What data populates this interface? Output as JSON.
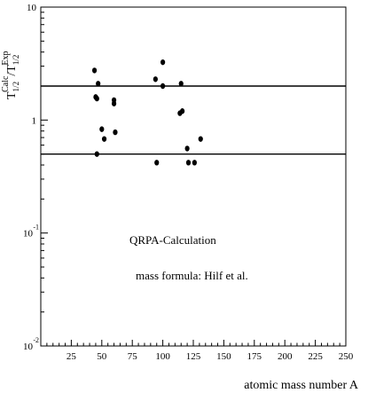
{
  "chart_data": {
    "type": "scatter",
    "title": "",
    "xlabel": "atomic mass number A",
    "ylabel_parts": {
      "T": "T",
      "sub": "1/2",
      "calc": "Calc",
      "slash": "/",
      "exp": "Exp"
    },
    "xlim": [
      0,
      250
    ],
    "ylim": [
      0.01,
      10
    ],
    "yscale": "log",
    "x_ticks": [
      25,
      50,
      75,
      100,
      125,
      150,
      175,
      200,
      225,
      250
    ],
    "x_tick_labels": [
      "25",
      "50",
      "75",
      "100",
      "125",
      "150",
      "175",
      "200",
      "225",
      "250"
    ],
    "y_tick_labels": [
      {
        "value": 10,
        "base": "10",
        "exp": ""
      },
      {
        "value": 1,
        "base": "1",
        "exp": ""
      },
      {
        "value": 0.1,
        "base": "10",
        "exp": "-1"
      },
      {
        "value": 0.01,
        "base": "10",
        "exp": "-2"
      }
    ],
    "reference_lines": [
      2,
      0.5
    ],
    "grid": false,
    "annotations": [
      "QRPA-Calculation",
      "mass formula: Hilf et al."
    ],
    "points": [
      {
        "x": 44,
        "y": 2.75
      },
      {
        "x": 45,
        "y": 1.6
      },
      {
        "x": 46,
        "y": 1.55
      },
      {
        "x": 47,
        "y": 2.1
      },
      {
        "x": 46,
        "y": 0.5
      },
      {
        "x": 50,
        "y": 0.83
      },
      {
        "x": 52,
        "y": 0.68
      },
      {
        "x": 60,
        "y": 1.5
      },
      {
        "x": 60,
        "y": 1.4
      },
      {
        "x": 61,
        "y": 0.78
      },
      {
        "x": 94,
        "y": 2.3
      },
      {
        "x": 95,
        "y": 0.42
      },
      {
        "x": 100,
        "y": 3.25
      },
      {
        "x": 100,
        "y": 2.0
      },
      {
        "x": 114,
        "y": 1.15
      },
      {
        "x": 115,
        "y": 2.1
      },
      {
        "x": 116,
        "y": 1.2
      },
      {
        "x": 120,
        "y": 0.56
      },
      {
        "x": 121,
        "y": 0.42
      },
      {
        "x": 126,
        "y": 0.42
      },
      {
        "x": 131,
        "y": 0.68
      }
    ]
  }
}
